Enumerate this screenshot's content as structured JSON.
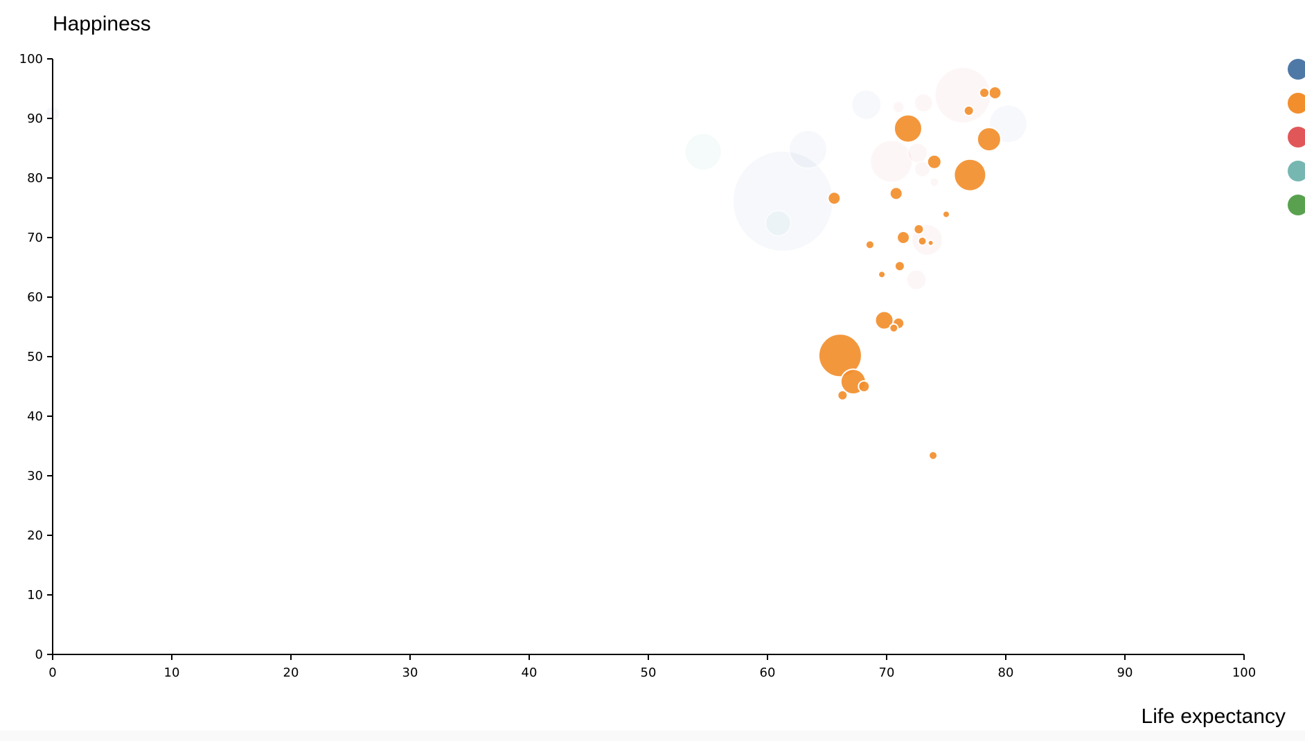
{
  "chart_data": {
    "type": "scatter",
    "title": "",
    "xlabel": "Life expectancy",
    "ylabel": "Happiness",
    "xlim": [
      0,
      100
    ],
    "ylim": [
      0,
      100
    ],
    "x_ticks": [
      "0",
      "10",
      "20",
      "30",
      "40",
      "50",
      "60",
      "70",
      "80",
      "90",
      "100"
    ],
    "y_ticks": [
      "0",
      "10",
      "20",
      "30",
      "40",
      "50",
      "60",
      "70",
      "80",
      "90",
      "100"
    ],
    "grid": false,
    "legend_position": "right",
    "legend_colors": [
      "#4e79a7",
      "#f28e2c",
      "#e15759",
      "#76b7b2",
      "#59a14f"
    ],
    "series": [
      {
        "color": "#f28e2c",
        "opacity": 0.92,
        "points": [
          {
            "x": 66.1,
            "y": 50.2,
            "r": 31
          },
          {
            "x": 67.2,
            "y": 45.8,
            "r": 18
          },
          {
            "x": 68.1,
            "y": 45.0,
            "r": 8
          },
          {
            "x": 66.3,
            "y": 43.5,
            "r": 7
          },
          {
            "x": 71.8,
            "y": 88.3,
            "r": 20
          },
          {
            "x": 77.0,
            "y": 80.5,
            "r": 23
          },
          {
            "x": 78.6,
            "y": 86.5,
            "r": 17
          },
          {
            "x": 79.1,
            "y": 94.3,
            "r": 9
          },
          {
            "x": 78.2,
            "y": 94.3,
            "r": 7
          },
          {
            "x": 76.9,
            "y": 91.3,
            "r": 7
          },
          {
            "x": 74.0,
            "y": 82.7,
            "r": 10
          },
          {
            "x": 70.8,
            "y": 77.4,
            "r": 9
          },
          {
            "x": 65.6,
            "y": 76.6,
            "r": 9
          },
          {
            "x": 75.0,
            "y": 73.9,
            "r": 5
          },
          {
            "x": 72.7,
            "y": 71.4,
            "r": 7
          },
          {
            "x": 71.4,
            "y": 70.0,
            "r": 9
          },
          {
            "x": 73.0,
            "y": 69.4,
            "r": 6
          },
          {
            "x": 73.7,
            "y": 69.1,
            "r": 4
          },
          {
            "x": 68.6,
            "y": 68.8,
            "r": 6
          },
          {
            "x": 71.1,
            "y": 65.2,
            "r": 7
          },
          {
            "x": 69.6,
            "y": 63.8,
            "r": 5
          },
          {
            "x": 69.8,
            "y": 56.1,
            "r": 13
          },
          {
            "x": 71.0,
            "y": 55.6,
            "r": 8
          },
          {
            "x": 70.6,
            "y": 54.8,
            "r": 6
          },
          {
            "x": 73.9,
            "y": 33.4,
            "r": 6
          }
        ]
      },
      {
        "color": "#4e79a7",
        "opacity": 0.05,
        "points": [
          {
            "x": 61.3,
            "y": 76.1,
            "r": 72
          },
          {
            "x": 63.4,
            "y": 84.8,
            "r": 27
          },
          {
            "x": 68.3,
            "y": 92.3,
            "r": 21
          },
          {
            "x": 80.2,
            "y": 89.1,
            "r": 27
          },
          {
            "x": 0.0,
            "y": 90.8,
            "r": 10
          }
        ]
      },
      {
        "color": "#e15759",
        "opacity": 0.05,
        "points": [
          {
            "x": 76.4,
            "y": 93.9,
            "r": 40
          },
          {
            "x": 70.4,
            "y": 82.8,
            "r": 30
          },
          {
            "x": 73.4,
            "y": 69.6,
            "r": 22
          },
          {
            "x": 73.1,
            "y": 92.6,
            "r": 13
          },
          {
            "x": 72.5,
            "y": 62.9,
            "r": 14
          },
          {
            "x": 72.6,
            "y": 84.2,
            "r": 14
          },
          {
            "x": 71.0,
            "y": 91.9,
            "r": 8
          },
          {
            "x": 74.0,
            "y": 79.3,
            "r": 6
          },
          {
            "x": 73.0,
            "y": 81.5,
            "r": 11
          }
        ]
      },
      {
        "color": "#76b7b2",
        "opacity": 0.07,
        "points": [
          {
            "x": 54.6,
            "y": 84.4,
            "r": 26
          },
          {
            "x": 60.9,
            "y": 72.4,
            "r": 18
          }
        ]
      }
    ]
  }
}
